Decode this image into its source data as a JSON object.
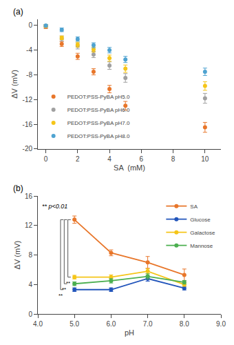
{
  "chart_data": [
    {
      "type": "scatter",
      "title": "(a)",
      "x_label": "SA  (mM)",
      "y_label": "ΔV (mV)",
      "xlim": [
        -0.5,
        11
      ],
      "ylim": [
        -20,
        1
      ],
      "xticks": [
        0,
        2,
        4,
        6,
        8,
        10
      ],
      "yticks": [
        0,
        -4,
        -8,
        -12,
        -16,
        -20
      ],
      "grid": false,
      "legend": "lower left",
      "series": [
        {
          "name": "PEDOT:PSS-PyBA pH5.0",
          "color": "#E8762A",
          "x": [
            0,
            1,
            2,
            3,
            4,
            5,
            10
          ],
          "values": [
            -0.2,
            -3.0,
            -5.0,
            -7.5,
            -10.3,
            -13.0,
            -16.5
          ],
          "yerr": [
            0.3,
            0.4,
            0.5,
            0.5,
            0.6,
            0.7,
            0.8
          ]
        },
        {
          "name": "PEDOT:PSS-PyBA pH6.0",
          "color": "#A0A0A0",
          "x": [
            0,
            1,
            2,
            3,
            4,
            5,
            10
          ],
          "values": [
            -0.1,
            -2.1,
            -3.3,
            -4.7,
            -6.5,
            -8.5,
            -11.8
          ],
          "yerr": [
            0.25,
            0.4,
            0.5,
            0.5,
            0.6,
            0.7,
            0.8
          ]
        },
        {
          "name": "PEDOT:PSS-PyBA pH7.0",
          "color": "#F5C518",
          "x": [
            0,
            1,
            2,
            3,
            4,
            5,
            10
          ],
          "values": [
            -0.05,
            -2.0,
            -3.1,
            -3.9,
            -5.3,
            -7.0,
            -9.8
          ],
          "yerr": [
            0.2,
            0.3,
            0.4,
            0.4,
            0.5,
            0.6,
            0.7
          ]
        },
        {
          "name": "PEDOT:PSS-PyBA pH8.0",
          "color": "#4FA3D1",
          "x": [
            0,
            1,
            2,
            3,
            4,
            5,
            10
          ],
          "values": [
            0.0,
            -0.7,
            -2.2,
            -3.2,
            -4.0,
            -5.5,
            -7.5
          ],
          "yerr": [
            0.15,
            0.3,
            0.35,
            0.4,
            0.45,
            0.5,
            0.6
          ]
        }
      ]
    },
    {
      "type": "line",
      "title": "(b)",
      "x_label": "pH",
      "y_label": "ΔV (mV)",
      "xlim": [
        4.0,
        9.0
      ],
      "ylim": [
        0,
        16
      ],
      "xticks": [
        {
          "value": 4.0,
          "label": "4.0"
        },
        {
          "value": 5.0,
          "label": "5.0"
        },
        {
          "value": 6.0,
          "label": "6.0"
        },
        {
          "value": 7.0,
          "label": "7.0"
        },
        {
          "value": 8.0,
          "label": "8.0"
        },
        {
          "value": 9.0,
          "label": "9.0"
        }
      ],
      "yticks": [
        0,
        4,
        8,
        12,
        16
      ],
      "grid": false,
      "legend": "upper right",
      "series": [
        {
          "name": "SA",
          "color": "#E8762A",
          "x": [
            5.0,
            6.0,
            7.0,
            8.0
          ],
          "values": [
            12.8,
            8.3,
            7.0,
            5.3
          ],
          "yerr": [
            0.5,
            0.4,
            0.8,
            0.8
          ]
        },
        {
          "name": "Glucose",
          "color": "#2255BB",
          "x": [
            5.0,
            6.0,
            7.0,
            8.0
          ],
          "values": [
            3.3,
            3.3,
            4.8,
            3.5
          ],
          "yerr": [
            0.25,
            0.25,
            0.35,
            0.25
          ]
        },
        {
          "name": "Galactose",
          "color": "#F5C518",
          "x": [
            5.0,
            6.0,
            7.0,
            8.0
          ],
          "values": [
            5.0,
            5.0,
            5.8,
            4.0
          ],
          "yerr": [
            0.25,
            0.3,
            0.35,
            0.25
          ]
        },
        {
          "name": "Mannose",
          "color": "#4CAF50",
          "x": [
            5.0,
            6.0,
            7.0,
            8.0
          ],
          "values": [
            4.1,
            4.5,
            5.1,
            4.3
          ],
          "yerr": [
            0.25,
            0.3,
            0.35,
            0.25
          ]
        }
      ],
      "annotations": [
        {
          "text": "** p<0.01",
          "x": 4.08,
          "y": 15.3
        }
      ],
      "brackets": [
        {
          "x": 4.62,
          "y_top": 12.8,
          "y_bottom": 3.3,
          "label": "**"
        },
        {
          "x": 4.72,
          "y_top": 12.8,
          "y_bottom": 4.1,
          "label": "**"
        },
        {
          "x": 4.82,
          "y_top": 12.8,
          "y_bottom": 5.0,
          "label": "**"
        }
      ]
    }
  ]
}
